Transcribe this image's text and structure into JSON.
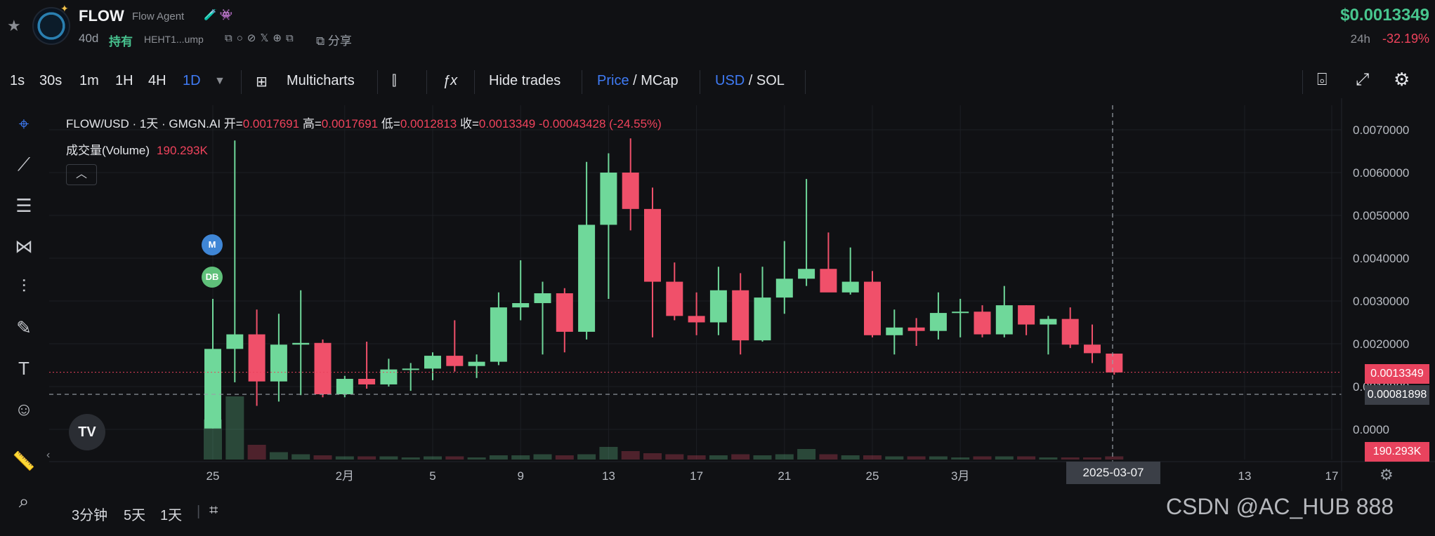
{
  "header": {
    "token_name": "FLOW",
    "token_subtitle": "Flow Agent",
    "token_badges": "🧪👾",
    "age": "40d",
    "hold_label": "持有",
    "address": "HEHT1...ump",
    "link_icons": "⧉○⊘𝕏⊕⧉",
    "share_label": "分享",
    "price": "$0.0013349",
    "change_period": "24h",
    "change_value": "-32.19%"
  },
  "toolbar": {
    "intervals": [
      "1s",
      "30s",
      "1m",
      "1H",
      "4H",
      "1D"
    ],
    "active_interval": "1D",
    "multicharts_label": "Multicharts",
    "hide_trades_label": "Hide trades",
    "price_label": "Price",
    "mcap_label": "MCap",
    "usd_label": "USD",
    "sol_label": "SOL"
  },
  "legend": {
    "symbol": "FLOW/USD · 1天 · GMGN.AI",
    "open_label": "开",
    "open": "0.0017691",
    "high_label": "高",
    "high": "0.0017691",
    "low_label": "低",
    "low": "0.0012813",
    "close_label": "收",
    "close": "0.0013349",
    "change": "-0.00043428 (-24.55%)",
    "volume_label": "成交量(Volume)",
    "volume": "190.293K"
  },
  "markers": {
    "m": "M",
    "db": "DB"
  },
  "price_tags": {
    "last": "0.0013349",
    "crosshair": "0.00081898",
    "volume": "190.293K"
  },
  "crosshair_date": "2025-03-07",
  "bottom": {
    "ranges": [
      "3分钟",
      "5天",
      "1天"
    ]
  },
  "watermark": "CSDN @AC_HUB 888",
  "colors": {
    "up": "#6fd89a",
    "down": "#f0506a",
    "bg": "#101114",
    "accent": "#3f7bf5"
  },
  "chart_data": {
    "type": "candlestick",
    "y_ticks": [
      "0.0070000",
      "0.0060000",
      "0.0050000",
      "0.0040000",
      "0.0030000",
      "0.0020000",
      "0.0010000",
      "0.0000"
    ],
    "ylim": [
      -0.0005,
      0.0073
    ],
    "x_ticks": [
      "25",
      "2月",
      "5",
      "9",
      "13",
      "17",
      "21",
      "25",
      "3月",
      "13",
      "17"
    ],
    "candles": [
      {
        "o": 2e-05,
        "h": 0.00305,
        "l": 2e-05,
        "c": 0.00188,
        "v": 0.38
      },
      {
        "o": 0.00188,
        "h": 0.00675,
        "l": 0.0011,
        "c": 0.00222,
        "v": 0.6
      },
      {
        "o": 0.00222,
        "h": 0.0028,
        "l": 0.00055,
        "c": 0.00112,
        "v": 0.14
      },
      {
        "o": 0.00112,
        "h": 0.0027,
        "l": 0.00065,
        "c": 0.00198,
        "v": 0.07
      },
      {
        "o": 0.00198,
        "h": 0.00325,
        "l": 0.0008,
        "c": 0.00202,
        "v": 0.05
      },
      {
        "o": 0.00202,
        "h": 0.0021,
        "l": 0.00075,
        "c": 0.00082,
        "v": 0.04
      },
      {
        "o": 0.00082,
        "h": 0.00125,
        "l": 0.00075,
        "c": 0.00118,
        "v": 0.03
      },
      {
        "o": 0.00118,
        "h": 0.00205,
        "l": 0.00095,
        "c": 0.00105,
        "v": 0.03
      },
      {
        "o": 0.00105,
        "h": 0.00165,
        "l": 0.001,
        "c": 0.0014,
        "v": 0.03
      },
      {
        "o": 0.0014,
        "h": 0.00155,
        "l": 0.0009,
        "c": 0.00142,
        "v": 0.02
      },
      {
        "o": 0.00142,
        "h": 0.0018,
        "l": 0.00115,
        "c": 0.00172,
        "v": 0.03
      },
      {
        "o": 0.00172,
        "h": 0.00255,
        "l": 0.00135,
        "c": 0.00148,
        "v": 0.03
      },
      {
        "o": 0.00148,
        "h": 0.00175,
        "l": 0.0012,
        "c": 0.00158,
        "v": 0.02
      },
      {
        "o": 0.00158,
        "h": 0.0032,
        "l": 0.0015,
        "c": 0.00285,
        "v": 0.04
      },
      {
        "o": 0.00285,
        "h": 0.00395,
        "l": 0.00255,
        "c": 0.00295,
        "v": 0.04
      },
      {
        "o": 0.00295,
        "h": 0.00345,
        "l": 0.00175,
        "c": 0.00318,
        "v": 0.05
      },
      {
        "o": 0.00318,
        "h": 0.0033,
        "l": 0.0018,
        "c": 0.00228,
        "v": 0.04
      },
      {
        "o": 0.00228,
        "h": 0.00625,
        "l": 0.0021,
        "c": 0.00478,
        "v": 0.05
      },
      {
        "o": 0.00478,
        "h": 0.00645,
        "l": 0.00305,
        "c": 0.006,
        "v": 0.12
      },
      {
        "o": 0.006,
        "h": 0.0068,
        "l": 0.00465,
        "c": 0.00515,
        "v": 0.08
      },
      {
        "o": 0.00515,
        "h": 0.00565,
        "l": 0.00215,
        "c": 0.00345,
        "v": 0.06
      },
      {
        "o": 0.00345,
        "h": 0.0039,
        "l": 0.00255,
        "c": 0.00265,
        "v": 0.05
      },
      {
        "o": 0.00265,
        "h": 0.0032,
        "l": 0.0022,
        "c": 0.0025,
        "v": 0.04
      },
      {
        "o": 0.0025,
        "h": 0.0038,
        "l": 0.0022,
        "c": 0.00325,
        "v": 0.04
      },
      {
        "o": 0.00325,
        "h": 0.00365,
        "l": 0.00175,
        "c": 0.00208,
        "v": 0.05
      },
      {
        "o": 0.00208,
        "h": 0.0038,
        "l": 0.00205,
        "c": 0.00308,
        "v": 0.04
      },
      {
        "o": 0.00308,
        "h": 0.0044,
        "l": 0.0027,
        "c": 0.00352,
        "v": 0.05
      },
      {
        "o": 0.00352,
        "h": 0.00585,
        "l": 0.00335,
        "c": 0.00375,
        "v": 0.1
      },
      {
        "o": 0.00375,
        "h": 0.0046,
        "l": 0.00325,
        "c": 0.0032,
        "v": 0.05
      },
      {
        "o": 0.0032,
        "h": 0.00425,
        "l": 0.00315,
        "c": 0.00345,
        "v": 0.04
      },
      {
        "o": 0.00345,
        "h": 0.0037,
        "l": 0.00215,
        "c": 0.0022,
        "v": 0.04
      },
      {
        "o": 0.0022,
        "h": 0.0028,
        "l": 0.00175,
        "c": 0.00238,
        "v": 0.03
      },
      {
        "o": 0.00238,
        "h": 0.0026,
        "l": 0.00195,
        "c": 0.0023,
        "v": 0.03
      },
      {
        "o": 0.0023,
        "h": 0.0032,
        "l": 0.0021,
        "c": 0.00272,
        "v": 0.03
      },
      {
        "o": 0.00272,
        "h": 0.00305,
        "l": 0.00215,
        "c": 0.00275,
        "v": 0.02
      },
      {
        "o": 0.00275,
        "h": 0.0029,
        "l": 0.00215,
        "c": 0.00222,
        "v": 0.03
      },
      {
        "o": 0.00222,
        "h": 0.00335,
        "l": 0.00215,
        "c": 0.0029,
        "v": 0.03
      },
      {
        "o": 0.0029,
        "h": 0.0029,
        "l": 0.0022,
        "c": 0.00245,
        "v": 0.03
      },
      {
        "o": 0.00245,
        "h": 0.00265,
        "l": 0.00175,
        "c": 0.00258,
        "v": 0.02
      },
      {
        "o": 0.00258,
        "h": 0.00285,
        "l": 0.0019,
        "c": 0.00198,
        "v": 0.02
      },
      {
        "o": 0.00198,
        "h": 0.00245,
        "l": 0.00155,
        "c": 0.00178,
        "v": 0.02
      },
      {
        "o": 0.00177,
        "h": 0.00177,
        "l": 0.00128,
        "c": 0.00133,
        "v": 0.03
      }
    ],
    "last_price": 0.0013349,
    "crosshair_price": 0.00081898
  }
}
